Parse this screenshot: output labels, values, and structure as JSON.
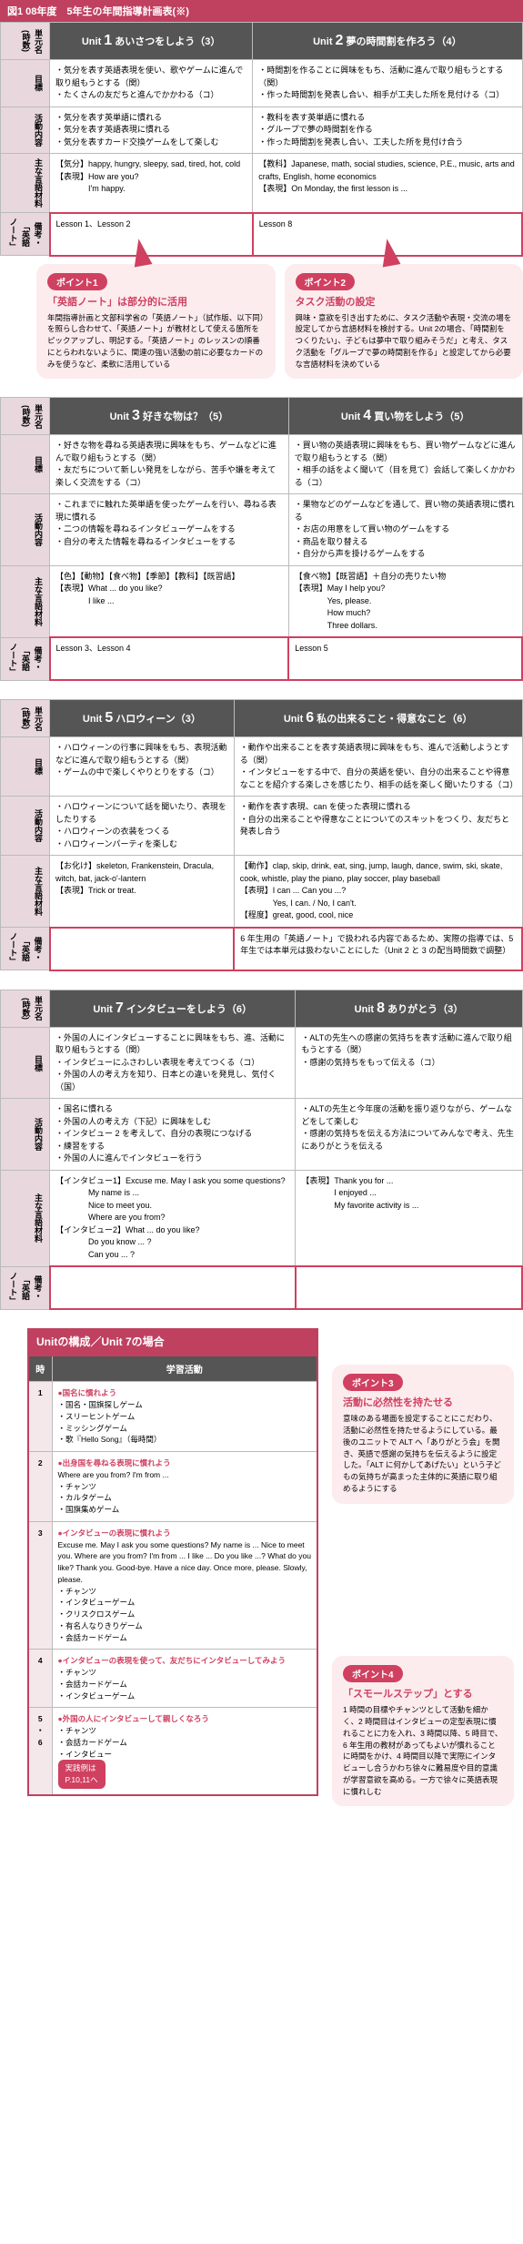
{
  "header": "図1 08年度　5年生の年間指導計画表(※)",
  "blocks": [
    {
      "units": [
        {
          "title": "Unit",
          "num": "1",
          "name": "あいさつをしよう（3）"
        },
        {
          "title": "Unit",
          "num": "2",
          "name": "夢の時間割を作ろう（4）"
        }
      ],
      "rows": {
        "目標": [
          "・気分を表す英語表現を使い、歌やゲームに進んで取り組もうとする（関）\n・たくさんの友だちと進んでかかわる（コ）",
          "・時間割を作ることに興味をもち、活動に進んで取り組もうとする（関）\n・作った時間割を発表し合い、相手が工夫した所を見付ける（コ）"
        ],
        "活動内容": [
          "・気分を表す英単語に慣れる\n・気分を表す英語表現に慣れる\n・気分を表すカード交換ゲームをして楽しむ",
          "・教科を表す英単語に慣れる\n・グループで夢の時間割を作る\n・作った時間割を発表し合い、工夫した所を見付け合う"
        ],
        "主な言語材料": [
          "【気分】happy, hungry, sleepy, sad, tired, hot, cold\n【表現】How are you?\n　　　　I'm happy.",
          "【教科】Japanese, math, social studies, science, P.E., music, arts and crafts, English, home economics\n【表現】On Monday, the first lesson is ..."
        ],
        "備考・「英語ノート」": [
          "Lesson 1、Lesson 2",
          "Lesson 8"
        ]
      },
      "points": [
        {
          "label": "ポイント1",
          "title": "「英語ノート」は部分的に活用",
          "text": "年間指導計画と文部科学省の「英語ノート」（試作版、以下同）を照らし合わせて、「英語ノート」が教材として使える箇所をピックアップし、明記する。「英語ノート」のレッスンの順番にとらわれないように、関連の強い活動の前に必要なカードのみを使うなど、柔軟に活用している"
        },
        {
          "label": "ポイント2",
          "title": "タスク活動の設定",
          "text": "興味・意欲を引き出すために、タスク活動や表現・交流の場を設定してから言語材料を検討する。Unit 2の場合、「時間割をつくりたい」、子どもは夢中で取り組みそうだ」と考え、タスク活動を「グループで夢の時間割を作る」と設定してから必要な言語材料を決めている"
        }
      ]
    },
    {
      "units": [
        {
          "title": "Unit",
          "num": "3",
          "name": "好きな物は？（5）"
        },
        {
          "title": "Unit",
          "num": "4",
          "name": "買い物をしよう（5）"
        }
      ],
      "rows": {
        "目標": [
          "・好きな物を尋ねる英語表現に興味をもち、ゲームなどに進んで取り組もうとする（関）\n・友だちについて新しい発見をしながら、苦手や嫌を考えて楽しく交流をする（コ）",
          "・買い物の英語表現に興味をもち、買い物ゲームなどに進んで取り組もうとする（関）\n・相手の話をよく聞いて（目を見て）会話して楽しくかかわる（コ）"
        ],
        "活動内容": [
          "・これまでに触れた英単語を使ったゲームを行い、尋ねる表現に慣れる\n・二つの情報を尋ねるインタビューゲームをする\n・自分の考えた情報を尋ねるインタビューをする",
          "・果物などのゲームなどを通して、買い物の英語表現に慣れる\n・お店の用意をして買い物のゲームをする\n・商品を取り替える\n・自分から声を掛けるゲームをする"
        ],
        "主な言語材料": [
          "【色】【動物】【食べ物】【季節】【教科】【既習語】\n【表現】What ... do you like?\n　　　　I like ...",
          "【食べ物】【既習語】＋自分の売りたい物\n【表現】May I help you?\n　　　　Yes, please.\n　　　　How much?\n　　　　Three dollars."
        ],
        "備考・「英語ノート」": [
          "Lesson 3、Lesson 4",
          "Lesson 5"
        ]
      }
    },
    {
      "units": [
        {
          "title": "Unit",
          "num": "5",
          "name": "ハロウィーン（3）"
        },
        {
          "title": "Unit",
          "num": "6",
          "name": "私の出来ること・得意なこと（6）"
        }
      ],
      "rows": {
        "目標": [
          "・ハロウィーンの行事に興味をもち、表現活動などに進んで取り組もうとする（関）\n・ゲームの中で楽しくやりとりをする（コ）",
          "・動作や出来ることを表す英語表現に興味をもち、進んで活動しようとする（関）\n・インタビューをする中で、自分の英語を使い、自分の出来ることや得意なことを紹介する楽しさを感じたり、相手の話を楽しく聞いたりする（コ）"
        ],
        "活動内容": [
          "・ハロウィーンについて話を聞いたり、表現をしたりする\n・ハロウィーンの衣装をつくる\n・ハロウィーンパーティを楽しむ",
          "・動作を表す表現、can を使った表現に慣れる\n・自分の出来ることや得意なことについてのスキットをつくり、友だちと発表し合う"
        ],
        "主な言語材料": [
          "【お化け】skeleton, Frankenstein, Dracula, witch, bat, jack-o'-lantern\n【表現】Trick or treat.",
          "【動作】clap, skip, drink, eat, sing, jump, laugh, dance, swim, ski, skate, cook, whistle, play the piano, play soccer, play baseball\n【表現】I can ... Can you ...?\n　　　　Yes, I can. / No, I can't.\n【程度】great, good, cool, nice"
        ],
        "備考・「英語ノート」": [
          "",
          "6 年生用の「英語ノート」で扱われる内容であるため、実際の指導では、5 年生では本単元は扱わないことにした（Unit 2 と 3 の配当時間数で調整）"
        ]
      }
    },
    {
      "units": [
        {
          "title": "Unit",
          "num": "7",
          "name": "インタビューをしよう（6）"
        },
        {
          "title": "Unit",
          "num": "8",
          "name": "ありがとう（3）"
        }
      ],
      "rows": {
        "目標": [
          "・外国の人にインタビューすることに興味をもち、進、活動に取り組もうとする（関）\n・インタビューにふさわしい表現を考えてつくる（コ）\n・外国の人の考え方を知り、日本との違いを発見し、気付く（国）",
          "・ALTの先生への感謝の気持ちを表す活動に進んで取り組もうとする（関）\n・感謝の気持ちをもって伝える（コ）"
        ],
        "活動内容": [
          "・国名に慣れる\n・外国の人の考え方（下記）に興味をしむ\n・インタビュー 2 を考えして、自分の表現につなげる\n・練習をする\n・外国の人に進んでインタビューを行う",
          "・ALTの先生と今年度の活動を振り返りながら、ゲームなどをして楽しむ\n・感謝の気持ちを伝える方法についてみんなで考え、先生にありがとうを伝える"
        ],
        "主な言語材料": [
          "【インタビュー1】Excuse me. May I ask you some questions?\n　　　　My name is ...\n　　　　Nice to meet you.\n　　　　Where are you from?\n【インタビュー2】What ... do you like?\n　　　　Do you know ... ?\n　　　　Can you ... ?",
          "【表現】Thank you for ...\n　　　　I enjoyed ...\n　　　　My favorite activity is ..."
        ],
        "備考・「英語ノート」": [
          "",
          ""
        ]
      }
    }
  ],
  "subheader": "Unitの構成／Unit 7の場合",
  "lessonTable": {
    "cols": [
      "時",
      "学習活動"
    ],
    "rows": [
      {
        "h": "1",
        "c": "●国名に慣れよう\n・国名・国旗探しゲーム\n・スリーヒントゲーム\n・ミッシングゲーム\n・歌『Hello Song』（毎時間）"
      },
      {
        "h": "2",
        "c": "●出身国を尋ねる表現に慣れよう\nWhere are you from? I'm from ...\n・チャンツ\n・カルタゲーム\n・国旗集めゲーム"
      },
      {
        "h": "3",
        "c": "●インタビューの表現に慣れよう\nExcuse me. May I ask you some questions? My name is ... Nice to meet you. Where are you from? I'm from ... I like ... Do you like ...? What do you like? Thank you. Good-bye. Have a nice day. Once more, please. Slowly, please.\n・チャンツ\n・インタビューゲーム\n・クリスクロスゲーム\n・有名人なりきりゲーム\n・会話カードゲーム"
      },
      {
        "h": "4",
        "c": "●インタビューの表現を使って、友だちにインタビューしてみよう\n・チャンツ\n・会話カードゲーム\n・インタビューゲーム"
      },
      {
        "h": "5\n・\n6",
        "c": "●外国の人にインタビューして親しくなろう\n・チャンツ\n・会話カードゲーム\n・インタビュー",
        "badge": "実践例は\nP.10,11へ"
      }
    ]
  },
  "sidePoints": [
    {
      "label": "ポイント3",
      "title": "活動に必然性を持たせる",
      "text": "意味のある場面を設定することにこだわり、活動に必然性を持たせるようにしている。最後のユニットで ALT へ「ありがとう会」を開き、英語で感謝の気持ちを伝えるように設定した。「ALT に何かしてあげたい」という子どもの気持ちが高まった主体的に英語に取り組めるようにする"
    },
    {
      "label": "ポイント4",
      "title": "「スモールステップ」とする",
      "text": "1 時間の目標やチャンツとして活動を細かく、2 時間目はインタビューの定型表現に慣れることに力を入れ、3 時間以降、5 時目で、6 年生用の教材があってもよいが慣れることに時間をかけ、4 時間目以降で実際にインタビューし合うかわち徐々に難易度や目的意識が学習意欲を高める。一方で徐々に英語表現に慣れしむ"
    }
  ]
}
